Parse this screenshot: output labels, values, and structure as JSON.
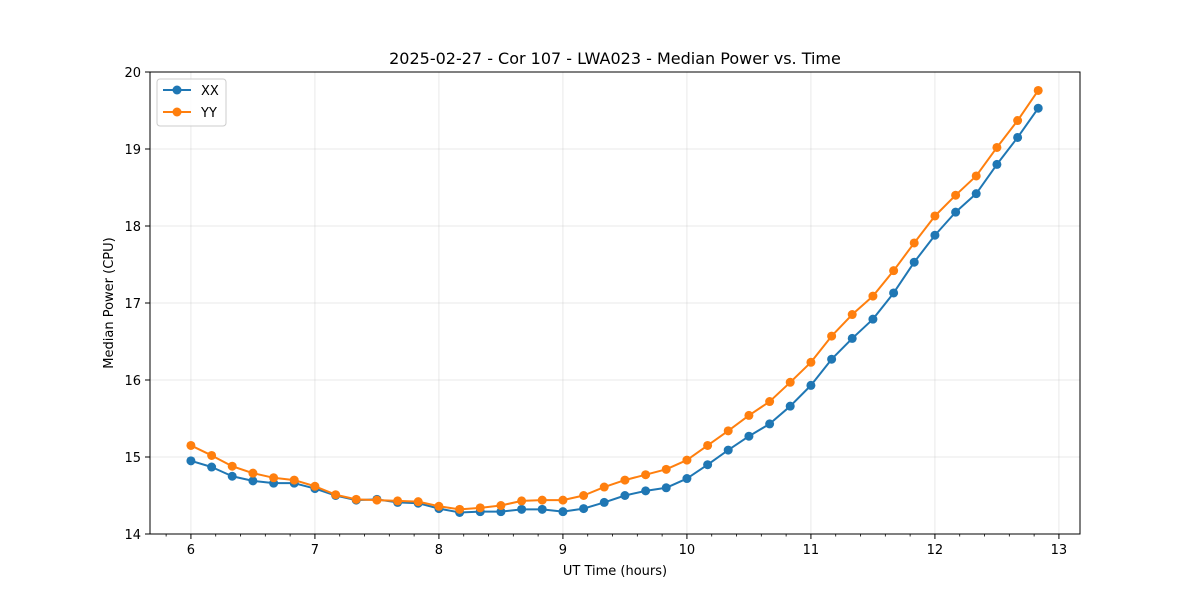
{
  "chart_data": {
    "type": "line",
    "title": "2025-02-27 - Cor 107 - LWA023 - Median Power vs. Time",
    "xlabel": "UT Time (hours)",
    "ylabel": "Median Power (CPU)",
    "xlim": [
      5.67,
      13.17
    ],
    "ylim": [
      14,
      20
    ],
    "xticks": [
      6,
      7,
      8,
      9,
      10,
      11,
      12,
      13
    ],
    "yticks": [
      14,
      15,
      16,
      17,
      18,
      19,
      20
    ],
    "grid": true,
    "legend_position": "upper-left",
    "x": [
      6.0,
      6.167,
      6.333,
      6.5,
      6.667,
      6.833,
      7.0,
      7.167,
      7.333,
      7.5,
      7.667,
      7.833,
      8.0,
      8.167,
      8.333,
      8.5,
      8.667,
      8.833,
      9.0,
      9.167,
      9.333,
      9.5,
      9.667,
      9.833,
      10.0,
      10.167,
      10.333,
      10.5,
      10.667,
      10.833,
      11.0,
      11.167,
      11.333,
      11.5,
      11.667,
      11.833,
      12.0,
      12.167,
      12.333,
      12.5,
      12.667,
      12.833
    ],
    "series": [
      {
        "name": "XX",
        "color": "#1f77b4",
        "values": [
          14.95,
          14.87,
          14.75,
          14.69,
          14.66,
          14.66,
          14.59,
          14.5,
          14.44,
          14.45,
          14.41,
          14.4,
          14.33,
          14.28,
          14.29,
          14.29,
          14.32,
          14.32,
          14.29,
          14.33,
          14.41,
          14.5,
          14.56,
          14.6,
          14.72,
          14.9,
          15.09,
          15.27,
          15.43,
          15.66,
          15.93,
          16.27,
          16.54,
          16.79,
          17.13,
          17.53,
          17.88,
          18.18,
          18.42,
          18.8,
          19.15,
          19.53
        ]
      },
      {
        "name": "YY",
        "color": "#ff7f0e",
        "values": [
          15.15,
          15.02,
          14.88,
          14.79,
          14.73,
          14.7,
          14.62,
          14.51,
          14.45,
          14.44,
          14.43,
          14.42,
          14.36,
          14.32,
          14.34,
          14.37,
          14.43,
          14.44,
          14.44,
          14.5,
          14.61,
          14.7,
          14.77,
          14.84,
          14.96,
          15.15,
          15.34,
          15.54,
          15.72,
          15.97,
          16.23,
          16.57,
          16.85,
          17.09,
          17.42,
          17.78,
          18.13,
          18.4,
          18.65,
          19.02,
          19.37,
          19.76
        ]
      }
    ]
  }
}
